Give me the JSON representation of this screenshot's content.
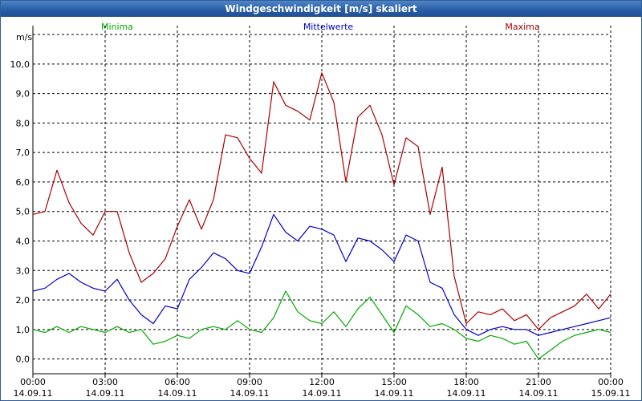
{
  "window": {
    "title": "Windgeschwindigkeit [m/s] skaliert"
  },
  "chart_data": {
    "type": "line",
    "title": "Windgeschwindigkeit [m/s] skaliert",
    "ylabel": "m/s",
    "ylim": [
      -0.5,
      11.3
    ],
    "xlim": [
      0,
      24
    ],
    "grid": true,
    "y_ticks": [
      "0,0",
      "1,0",
      "2,0",
      "3,0",
      "4,0",
      "5,0",
      "6,0",
      "7,0",
      "8,0",
      "9,0",
      "10,0"
    ],
    "x_ticks": [
      {
        "time": "00:00",
        "date": "14.09.11"
      },
      {
        "time": "03:00",
        "date": "14.09.11"
      },
      {
        "time": "06:00",
        "date": "14.09.11"
      },
      {
        "time": "09:00",
        "date": "14.09.11"
      },
      {
        "time": "12:00",
        "date": "14.09.11"
      },
      {
        "time": "15:00",
        "date": "14.09.11"
      },
      {
        "time": "18:00",
        "date": "14.09.11"
      },
      {
        "time": "21:00",
        "date": "14.09.11"
      },
      {
        "time": "00:00",
        "date": "15.09.11"
      }
    ],
    "series": [
      {
        "name": "Minima",
        "color": "#00aa00",
        "x": [
          0,
          0.5,
          1,
          1.5,
          2,
          2.5,
          3,
          3.5,
          4,
          4.5,
          5,
          5.5,
          6,
          6.5,
          7,
          7.5,
          8,
          8.5,
          9,
          9.5,
          10,
          10.5,
          11,
          11.5,
          12,
          12.5,
          13,
          13.5,
          14,
          14.5,
          15,
          15.5,
          16,
          16.5,
          17,
          17.5,
          18,
          18.5,
          19,
          19.5,
          20,
          20.5,
          21,
          21.5,
          22,
          22.5,
          23,
          23.5,
          24
        ],
        "y": [
          1.0,
          0.9,
          1.1,
          0.9,
          1.1,
          1.0,
          0.9,
          1.1,
          0.9,
          1.0,
          0.5,
          0.6,
          0.8,
          0.7,
          1.0,
          1.1,
          1.0,
          1.3,
          1.0,
          0.9,
          1.4,
          2.3,
          1.6,
          1.3,
          1.2,
          1.6,
          1.1,
          1.7,
          2.1,
          1.5,
          0.9,
          1.8,
          1.5,
          1.1,
          1.2,
          1.0,
          0.7,
          0.6,
          0.8,
          0.7,
          0.5,
          0.6,
          0.0,
          0.3,
          0.6,
          0.8,
          0.9,
          1.0,
          0.9
        ]
      },
      {
        "name": "Mittelwerte",
        "color": "#0000cc",
        "x": [
          0,
          0.5,
          1,
          1.5,
          2,
          2.5,
          3,
          3.5,
          4,
          4.5,
          5,
          5.5,
          6,
          6.5,
          7,
          7.5,
          8,
          8.5,
          9,
          9.5,
          10,
          10.5,
          11,
          11.5,
          12,
          12.5,
          13,
          13.5,
          14,
          14.5,
          15,
          15.5,
          16,
          16.5,
          17,
          17.5,
          18,
          18.5,
          19,
          19.5,
          20,
          20.5,
          21,
          21.5,
          22,
          22.5,
          23,
          23.5,
          24
        ],
        "y": [
          2.3,
          2.4,
          2.7,
          2.9,
          2.6,
          2.4,
          2.3,
          2.7,
          2.0,
          1.5,
          1.2,
          1.8,
          1.7,
          2.7,
          3.1,
          3.6,
          3.4,
          3.0,
          2.9,
          3.8,
          4.9,
          4.3,
          4.0,
          4.5,
          4.4,
          4.2,
          3.3,
          4.1,
          4.0,
          3.7,
          3.3,
          4.2,
          4.0,
          2.6,
          2.4,
          1.5,
          1.0,
          0.8,
          1.0,
          1.1,
          1.0,
          1.0,
          0.8,
          0.9,
          1.0,
          1.1,
          1.2,
          1.3,
          1.4
        ]
      },
      {
        "name": "Maxima",
        "color": "#aa0000",
        "x": [
          0,
          0.5,
          1,
          1.5,
          2,
          2.5,
          3,
          3.5,
          4,
          4.5,
          5,
          5.5,
          6,
          6.5,
          7,
          7.5,
          8,
          8.5,
          9,
          9.5,
          10,
          10.5,
          11,
          11.5,
          12,
          12.5,
          13,
          13.5,
          14,
          14.5,
          15,
          15.5,
          16,
          16.5,
          17,
          17.5,
          18,
          18.5,
          19,
          19.5,
          20,
          20.5,
          21,
          21.5,
          22,
          22.5,
          23,
          23.5,
          24
        ],
        "y": [
          4.9,
          5.0,
          6.4,
          5.3,
          4.6,
          4.2,
          5.0,
          5.0,
          3.6,
          2.6,
          2.9,
          3.4,
          4.5,
          5.4,
          4.4,
          5.4,
          7.6,
          7.5,
          6.8,
          6.3,
          9.4,
          8.6,
          8.4,
          8.1,
          9.7,
          8.7,
          6.0,
          8.2,
          8.6,
          7.6,
          5.9,
          7.5,
          7.2,
          4.9,
          6.5,
          2.8,
          1.2,
          1.6,
          1.5,
          1.7,
          1.3,
          1.5,
          1.0,
          1.4,
          1.6,
          1.8,
          2.2,
          1.7,
          2.2
        ]
      }
    ]
  }
}
